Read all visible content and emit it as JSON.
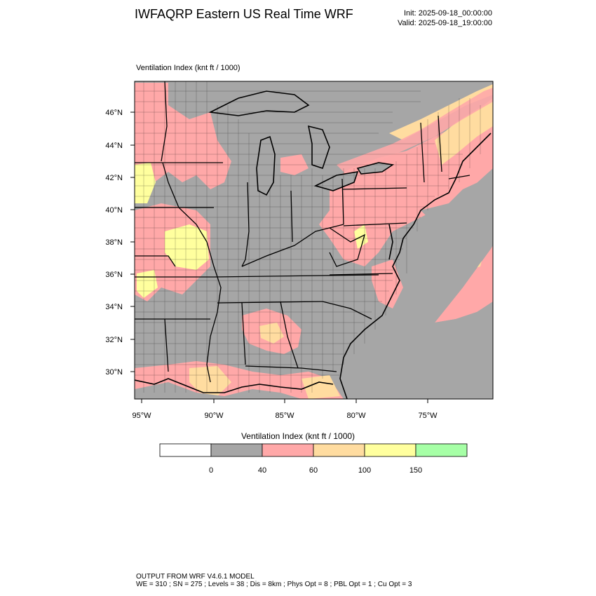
{
  "header": {
    "title": "IWFAQRP Eastern US Real Time WRF",
    "init": "Init: 2025-09-18_00:00:00",
    "valid": "Valid: 2025-09-18_19:00:00"
  },
  "map": {
    "field_label": "Ventilation Index   (knt ft / 1000)",
    "lat_labels": [
      "46°N",
      "44°N",
      "42°N",
      "40°N",
      "38°N",
      "36°N",
      "34°N",
      "32°N",
      "30°N"
    ],
    "lon_labels": [
      "95°W",
      "90°W",
      "85°W",
      "80°W",
      "75°W"
    ],
    "colors": {
      "background": "#a6a6a6",
      "pink": "#ffa8a8",
      "orange": "#ffdca0",
      "yellow": "#ffff9e",
      "green": "#a6ffa6",
      "white": "#ffffff",
      "lines": "#000000"
    }
  },
  "colorbar": {
    "title": "Ventilation Index  (knt ft / 1000)",
    "colors": [
      "#ffffff",
      "#a6a6a6",
      "#ffa8a8",
      "#ffdca0",
      "#ffff9e",
      "#a6ffa6"
    ],
    "labels": [
      "0",
      "40",
      "60",
      "100",
      "150"
    ]
  },
  "footer": {
    "line1": "OUTPUT FROM WRF V4.6.1 MODEL",
    "line2": "WE = 310 ; SN = 275 ; Levels = 38 ; Dis = 8km ; Phys Opt = 8 ; PBL Opt = 1 ; Cu Opt = 3"
  }
}
